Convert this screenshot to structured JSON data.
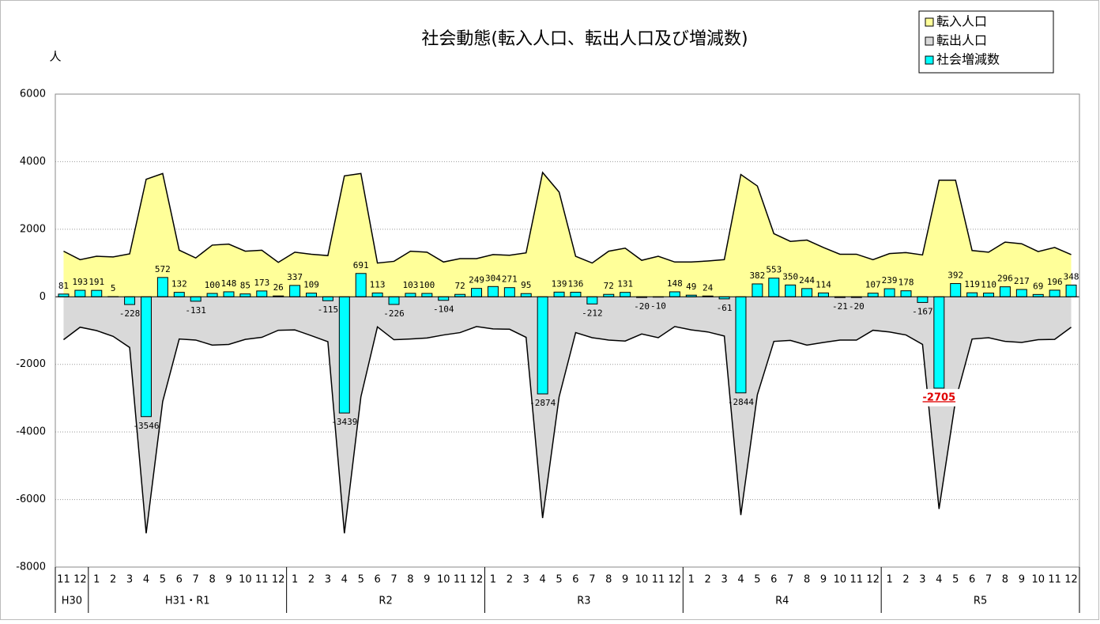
{
  "chart_data": {
    "type": "combo",
    "title": "社会動態(転入人口、転出人口及び増減数)",
    "y_unit": "人",
    "categories": [
      "11",
      "12",
      "1",
      "2",
      "3",
      "4",
      "5",
      "6",
      "7",
      "8",
      "9",
      "10",
      "11",
      "12",
      "1",
      "2",
      "3",
      "4",
      "5",
      "6",
      "7",
      "8",
      "9",
      "10",
      "11",
      "12",
      "1",
      "2",
      "3",
      "4",
      "5",
      "6",
      "7",
      "8",
      "9",
      "10",
      "11",
      "12",
      "1",
      "2",
      "3",
      "4",
      "5",
      "6",
      "7",
      "8",
      "9",
      "10",
      "11",
      "12",
      "1",
      "2",
      "3",
      "4",
      "5",
      "6",
      "7",
      "8",
      "9",
      "10",
      "11",
      "12"
    ],
    "x_groups": [
      {
        "label": "H30",
        "span": 2
      },
      {
        "label": "H31・R1",
        "span": 12
      },
      {
        "label": "R2",
        "span": 12
      },
      {
        "label": "R3",
        "span": 12
      },
      {
        "label": "R4",
        "span": 12
      },
      {
        "label": "R5",
        "span": 12
      }
    ],
    "series": [
      {
        "name": "転入人口",
        "type": "area",
        "color": "#ffff99",
        "values": [
          1350,
          1100,
          1200,
          1180,
          1270,
          3480,
          3650,
          1380,
          1150,
          1530,
          1560,
          1350,
          1380,
          1020,
          1320,
          1260,
          1220,
          3580,
          3650,
          1000,
          1050,
          1350,
          1320,
          1030,
          1130,
          1130,
          1250,
          1230,
          1300,
          3680,
          3100,
          1200,
          1000,
          1350,
          1440,
          1080,
          1200,
          1030,
          1030,
          1060,
          1100,
          3620,
          3280,
          1870,
          1640,
          1680,
          1460,
          1260,
          1260,
          1100,
          1280,
          1310,
          1240,
          3450,
          3450,
          1370,
          1320,
          1620,
          1570,
          1340,
          1460,
          1250
        ]
      },
      {
        "name": "転出人口",
        "type": "area",
        "color": "#d9d9d9",
        "values": [
          -1270,
          -900,
          -1000,
          -1170,
          -1500,
          -7000,
          -3100,
          -1250,
          -1280,
          -1430,
          -1410,
          -1260,
          -1200,
          -990,
          -980,
          -1150,
          -1330,
          -7000,
          -2960,
          -890,
          -1270,
          -1250,
          -1220,
          -1130,
          -1060,
          -880,
          -950,
          -960,
          -1200,
          -6550,
          -2960,
          -1060,
          -1210,
          -1280,
          -1310,
          -1100,
          -1210,
          -880,
          -980,
          -1040,
          -1160,
          -6460,
          -2900,
          -1320,
          -1290,
          -1430,
          -1350,
          -1280,
          -1280,
          -990,
          -1040,
          -1130,
          -1410,
          -6280,
          -3060,
          -1250,
          -1210,
          -1320,
          -1350,
          -1270,
          -1260,
          -900
        ]
      },
      {
        "name": "社会増減数",
        "type": "bar",
        "color": "#00ffff",
        "data_labels": true,
        "highlighted_point": 53,
        "highlight_color": "#e00000",
        "values": [
          81,
          193,
          191,
          5,
          -228,
          -3546,
          572,
          132,
          -131,
          100,
          148,
          85,
          173,
          26,
          337,
          109,
          -115,
          -3439,
          691,
          113,
          -226,
          103,
          100,
          -104,
          72,
          249,
          304,
          271,
          95,
          -2874,
          139,
          136,
          -212,
          72,
          131,
          -20,
          -10,
          148,
          49,
          24,
          -61,
          -2844,
          382,
          553,
          350,
          244,
          114,
          -21,
          -20,
          107,
          239,
          178,
          -167,
          -2705,
          392,
          119,
          110,
          296,
          217,
          69,
          196,
          348
        ]
      }
    ],
    "ylim": [
      -8000,
      6000
    ],
    "yticks": [
      -8000,
      -6000,
      -4000,
      -2000,
      0,
      2000,
      4000,
      6000
    ],
    "grid": true,
    "legend": "top-right"
  }
}
